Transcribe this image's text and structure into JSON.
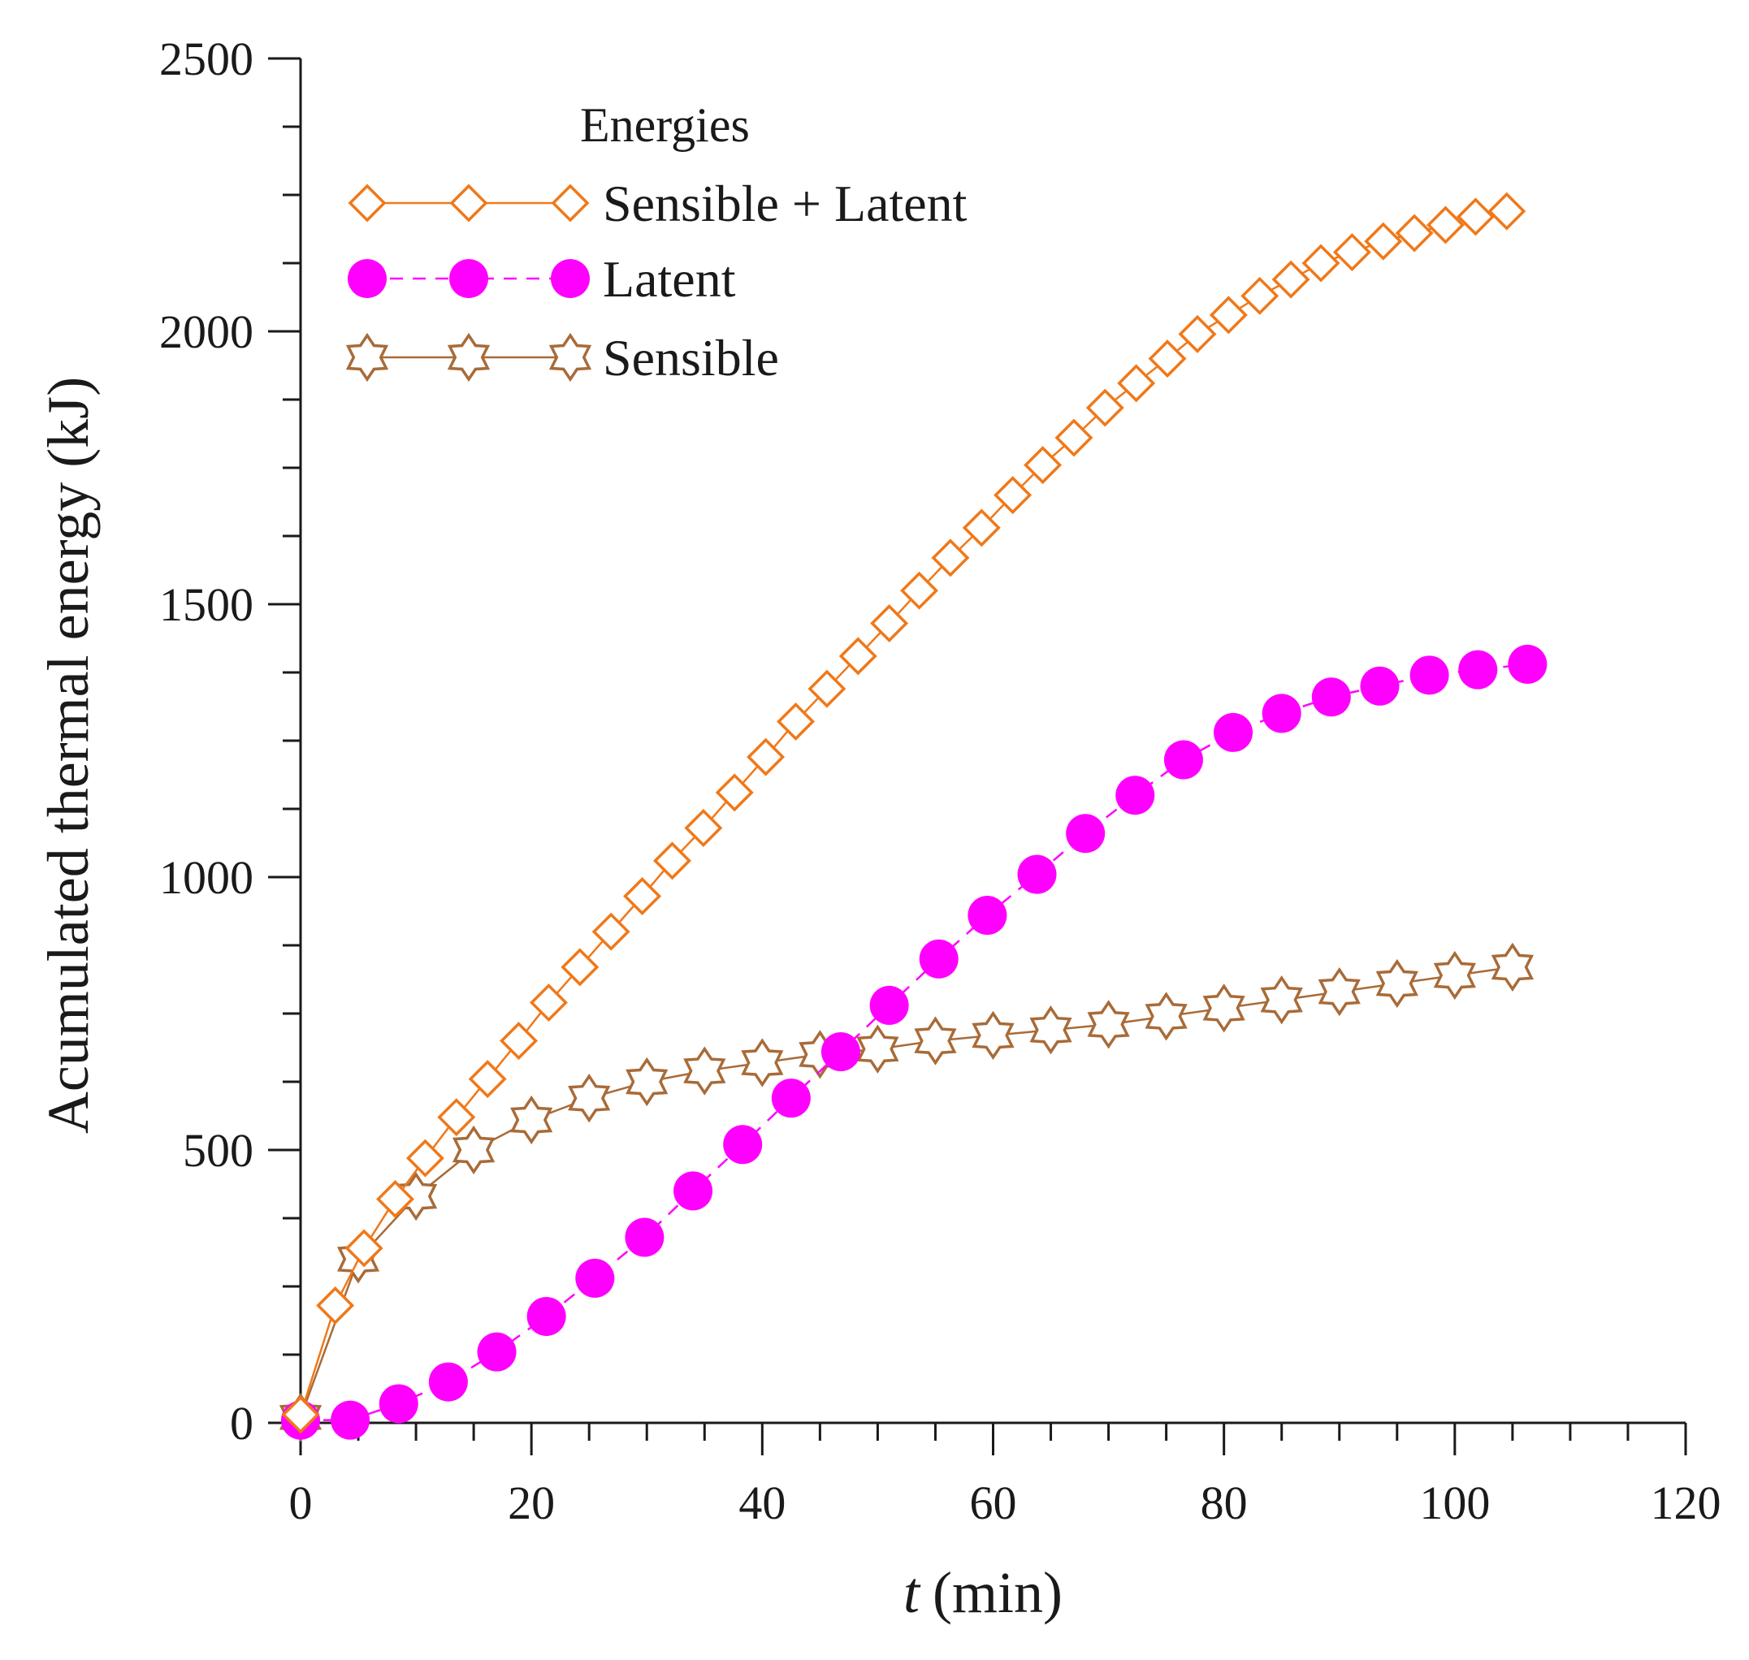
{
  "chart_data": {
    "type": "line",
    "title": "",
    "xlabel_italic": "t",
    "xlabel_unit": "(min)",
    "ylabel": "Acumulated thermal energy (kJ)",
    "xlim": [
      0,
      120
    ],
    "ylim": [
      0,
      2500
    ],
    "x_ticks": [
      0,
      20,
      40,
      60,
      80,
      100,
      120
    ],
    "y_ticks": [
      0,
      500,
      1000,
      1500,
      2000,
      2500
    ],
    "x_minor_step": 5,
    "y_minor_step": 125,
    "grid": false,
    "legend_position": "top-left",
    "legend_title": "Energies",
    "series": [
      {
        "name": "Sensible + Latent",
        "color": "#f07818",
        "marker": "diamond-open",
        "line": "solid",
        "x": [
          0,
          3,
          5.5,
          8.2,
          10.8,
          13.5,
          16.2,
          18.9,
          21.5,
          24.2,
          26.9,
          29.6,
          32.2,
          34.9,
          37.6,
          40.3,
          42.9,
          45.6,
          48.3,
          51,
          53.6,
          56.3,
          59,
          61.7,
          64.3,
          67,
          69.7,
          72.4,
          75.1,
          77.7,
          80.4,
          83.1,
          85.8,
          88.4,
          91.1,
          93.8,
          96.5,
          99.2,
          101.8,
          104.5
        ],
        "y": [
          15,
          215,
          320,
          410,
          485,
          560,
          630,
          700,
          770,
          835,
          900,
          965,
          1030,
          1090,
          1155,
          1220,
          1285,
          1345,
          1405,
          1465,
          1525,
          1585,
          1640,
          1700,
          1755,
          1805,
          1860,
          1905,
          1950,
          1995,
          2030,
          2065,
          2095,
          2125,
          2145,
          2165,
          2180,
          2195,
          2210,
          2220
        ]
      },
      {
        "name": "Latent",
        "color": "#ff00ff",
        "marker": "circle-filled",
        "line": "dash",
        "x": [
          0,
          4.3,
          8.5,
          12.8,
          17,
          21.3,
          25.5,
          29.8,
          34,
          38.3,
          42.5,
          46.8,
          51,
          55.3,
          59.5,
          63.8,
          68,
          72.3,
          76.5,
          80.8,
          85,
          89.3,
          93.5,
          97.8,
          102,
          106.3
        ],
        "y": [
          5,
          5,
          35,
          75,
          130,
          195,
          265,
          340,
          425,
          510,
          595,
          680,
          765,
          850,
          930,
          1005,
          1080,
          1150,
          1215,
          1265,
          1300,
          1330,
          1350,
          1370,
          1380,
          1390
        ]
      },
      {
        "name": "Sensible",
        "color": "#a86b38",
        "marker": "star6-open",
        "line": "solid",
        "x": [
          0,
          5,
          10,
          15,
          20,
          25,
          30,
          35,
          40,
          45,
          50,
          55,
          60,
          65,
          70,
          75,
          80,
          85,
          90,
          95,
          100,
          105
        ],
        "y": [
          10,
          300,
          415,
          500,
          555,
          595,
          625,
          645,
          660,
          675,
          685,
          700,
          710,
          720,
          730,
          745,
          760,
          775,
          790,
          805,
          820,
          835
        ]
      }
    ]
  }
}
